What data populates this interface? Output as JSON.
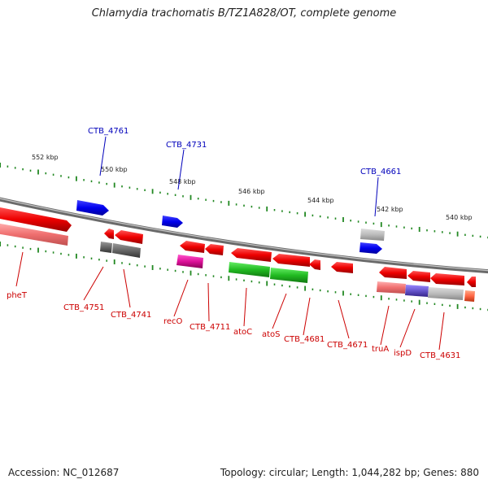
{
  "title": "Chlamydia trachomatis B/TZ1A828/OT, complete genome",
  "footer": {
    "accession": "Accession: NC_012687",
    "stats": "Topology: circular; Length: 1,044,282 bp; Genes: 880"
  },
  "colors": {
    "forward_cds": "#e00000",
    "reverse_cds": "#ee2222",
    "rna": "#0000ee",
    "cog_pink": "#f08080",
    "cog_gray": "#777777",
    "cog_green": "#22bb22",
    "cog_magenta": "#dd1199",
    "cog_purple": "#6655cc",
    "cog_lightgray": "#bbbbbb",
    "backbone": "#888888",
    "ticks": "#228822",
    "label_red": "#cc0000",
    "label_blue": "#0000bb"
  },
  "scale": {
    "ticks": [
      "552 kbp",
      "550 kbp",
      "548 kbp",
      "546 kbp",
      "544 kbp",
      "542 kbp",
      "540 kbp"
    ]
  },
  "labels": {
    "top": [
      "CTB_4761",
      "CTB_4731",
      "CTB_4661"
    ],
    "bottom": [
      "pheT",
      "CTB_4751",
      "CTB_4741",
      "recO",
      "CTB_4711",
      "atoC",
      "atoS",
      "CTB_4681",
      "CTB_4671",
      "truA",
      "ispD",
      "CTB_4631"
    ]
  }
}
